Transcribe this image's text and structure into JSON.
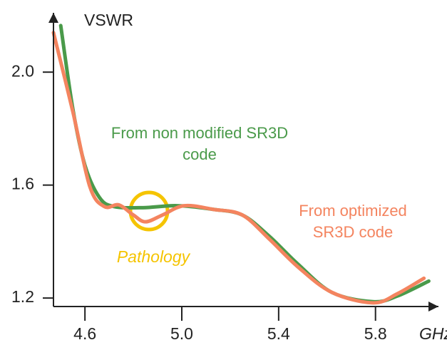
{
  "chart_data": {
    "type": "line",
    "y_label": "VSWR",
    "x_label": "GHz",
    "annotation": "Pathology",
    "xlim": [
      4.47,
      6.06
    ],
    "ylim": [
      1.17,
      2.21
    ],
    "xticks": [
      4.6,
      {
        "value": 5.0,
        "label": "5.0"
      },
      5.4,
      5.8
    ],
    "yticks": [
      {
        "value": 1.2,
        "label": "1.2"
      },
      1.6,
      {
        "value": 2.0,
        "label": "2.0"
      }
    ],
    "series": [
      {
        "name": "From non modified SR3D code",
        "color": "#4a9a4a",
        "x": [
          4.5,
          4.55,
          4.6,
          4.66,
          4.72,
          4.84,
          4.98,
          5.13,
          5.25,
          5.36,
          5.48,
          5.62,
          5.79,
          5.89,
          6.02
        ],
        "values": [
          2.165,
          1.87,
          1.67,
          1.556,
          1.524,
          1.52,
          1.527,
          1.514,
          1.494,
          1.42,
          1.32,
          1.22,
          1.187,
          1.207,
          1.26
        ]
      },
      {
        "name": "From optimized SR3D code",
        "color": "#f4845f",
        "x": [
          4.47,
          4.55,
          4.62,
          4.68,
          4.74,
          4.8,
          4.85,
          4.92,
          5.01,
          5.13,
          5.25,
          5.36,
          5.48,
          5.62,
          5.79,
          5.89,
          6.0
        ],
        "values": [
          2.14,
          1.86,
          1.595,
          1.524,
          1.53,
          1.494,
          1.47,
          1.494,
          1.527,
          1.514,
          1.494,
          1.41,
          1.31,
          1.22,
          1.183,
          1.215,
          1.27
        ]
      }
    ]
  }
}
